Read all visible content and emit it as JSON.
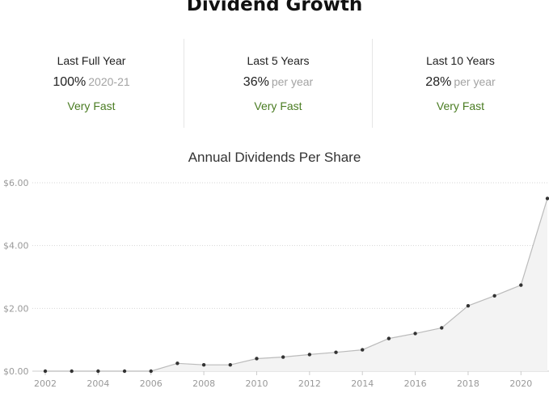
{
  "section": {
    "title": "Dividend Growth"
  },
  "stats": [
    {
      "label": "Last Full Year",
      "value": "100%",
      "note": "2020-21",
      "speed": "Very Fast"
    },
    {
      "label": "Last 5 Years",
      "value": "36%",
      "note": "per year",
      "speed": "Very Fast"
    },
    {
      "label": "Last 10 Years",
      "value": "28%",
      "note": "per year",
      "speed": "Very Fast"
    }
  ],
  "colors": {
    "speed": "#4a7c22",
    "line": "#bbbbbb",
    "fill": "#f3f3f3",
    "point": "#333333"
  },
  "chart_data": {
    "type": "area",
    "title": "Annual Dividends Per Share",
    "xlabel": "",
    "ylabel": "",
    "x": [
      2002,
      2003,
      2004,
      2005,
      2006,
      2007,
      2008,
      2009,
      2010,
      2011,
      2012,
      2013,
      2014,
      2015,
      2016,
      2017,
      2018,
      2019,
      2020,
      2021
    ],
    "values": [
      0,
      0,
      0,
      0,
      0,
      0.25,
      0.2,
      0.2,
      0.4,
      0.45,
      0.53,
      0.6,
      0.68,
      1.04,
      1.2,
      1.38,
      2.08,
      2.4,
      2.74,
      5.5
    ],
    "ylim": [
      0,
      6
    ],
    "yticks": [
      "$0.00",
      "$2.00",
      "$4.00",
      "$6.00"
    ],
    "ytick_values": [
      0,
      2,
      4,
      6
    ],
    "xticks": [
      "2002",
      "2004",
      "2006",
      "2008",
      "2010",
      "2012",
      "2014",
      "2016",
      "2018",
      "2020"
    ],
    "xtick_values": [
      2002,
      2004,
      2006,
      2008,
      2010,
      2012,
      2014,
      2016,
      2018,
      2020
    ],
    "grid": true
  }
}
